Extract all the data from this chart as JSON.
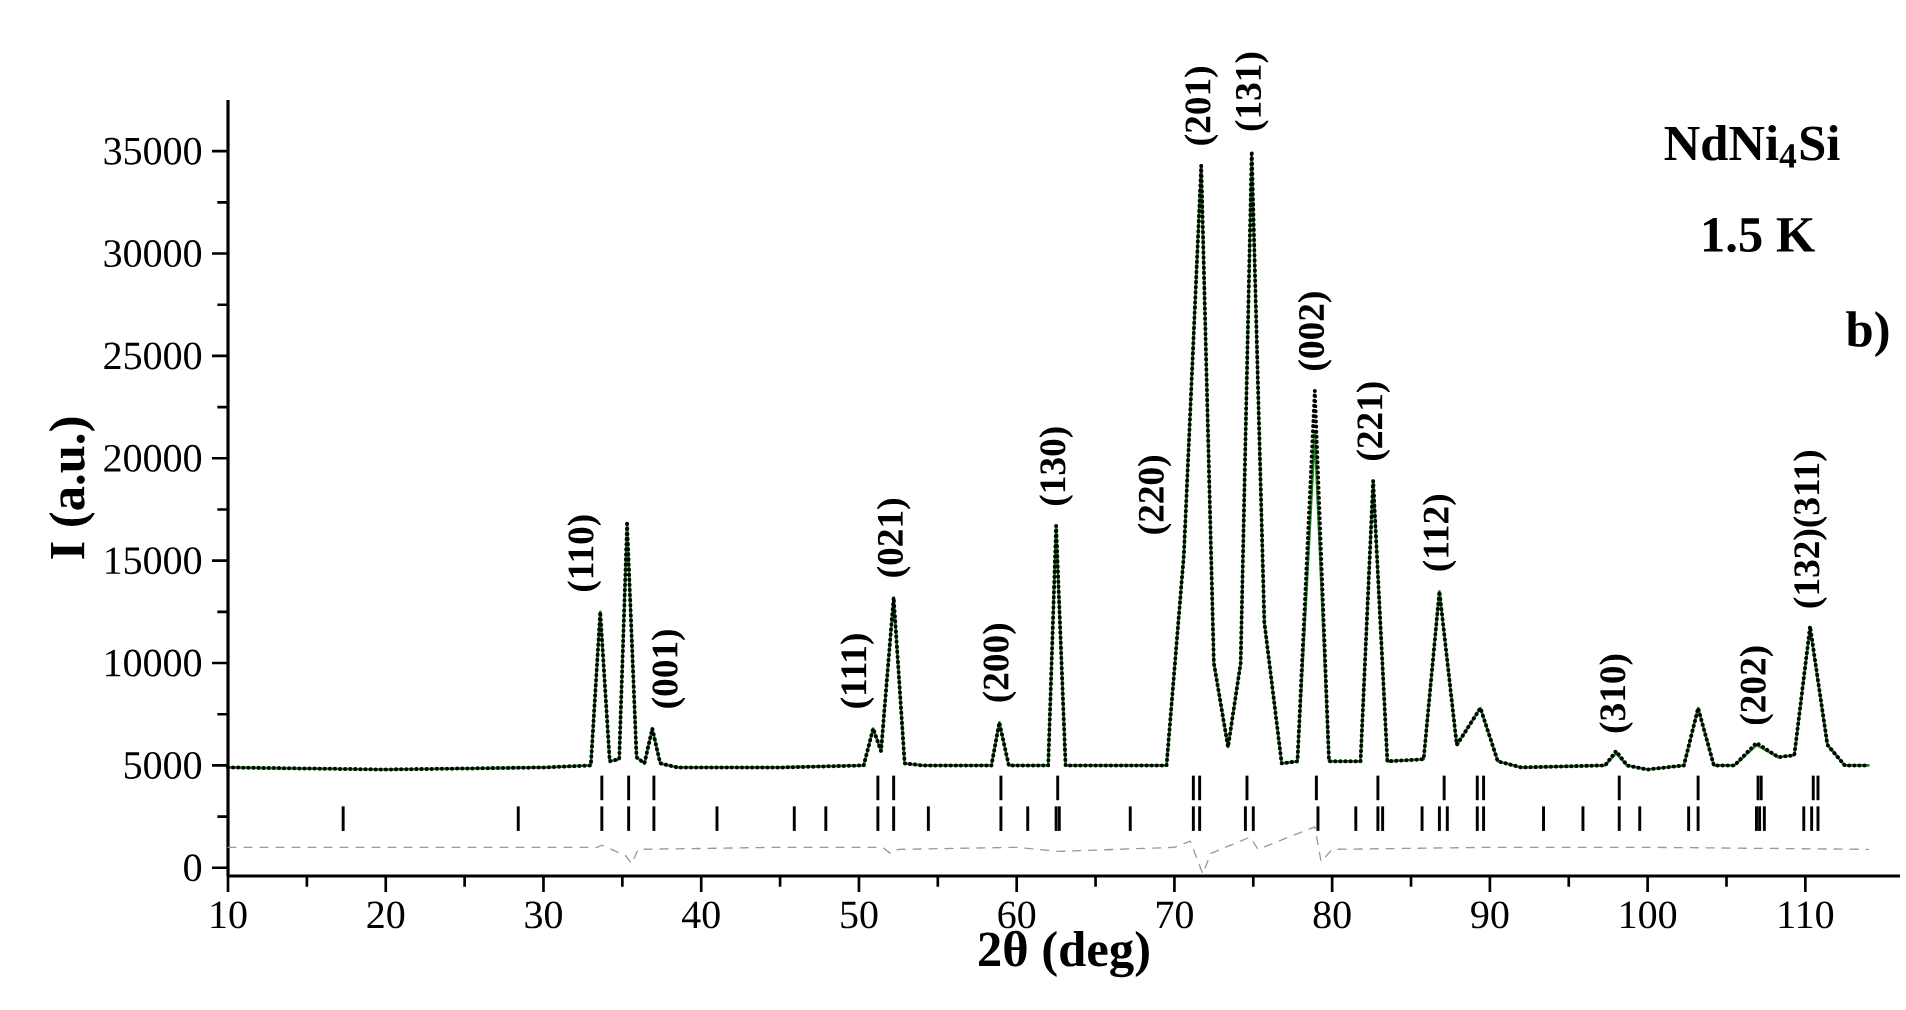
{
  "chart_data": {
    "type": "line",
    "title": "NdNi$_{4}$Si",
    "xlabel": "2θ (deg)",
    "ylabel": "I (a.u.)",
    "xlim": [
      10,
      116
    ],
    "xticks": [
      10,
      20,
      30,
      40,
      50,
      60,
      70,
      80,
      90,
      100,
      110
    ],
    "ylim": [
      -400,
      37500
    ],
    "yticks": [
      0,
      5000,
      10000,
      15000,
      20000,
      25000,
      30000,
      35000
    ],
    "grid": false,
    "series": [
      {
        "color": "#1a8a1a",
        "line_style": "solid",
        "x": [
          10,
          20,
          30,
          33.0,
          33.6,
          34.2,
          34.8,
          35.3,
          35.9,
          36.4,
          36.9,
          37.4,
          38.5,
          45,
          50.3,
          50.9,
          51.4,
          52.2,
          52.9,
          54,
          58.4,
          58.9,
          59.5,
          62.0,
          62.5,
          63.1,
          69.5,
          70.6,
          71.7,
          72.5,
          73.4,
          74.2,
          74.9,
          75.7,
          76.8,
          77.8,
          78.9,
          79.8,
          81.8,
          82.6,
          83.5,
          85.8,
          86.8,
          87.9,
          89.4,
          90.5,
          92,
          97.3,
          98.0,
          98.7,
          100,
          102.3,
          103.2,
          104.2,
          105.5,
          106.9,
          108.3,
          109.3,
          110.3,
          111.4,
          112.5,
          114
        ],
        "values": [
          4900,
          4800,
          4900,
          5000,
          12500,
          5200,
          5300,
          16800,
          5400,
          5100,
          6800,
          5100,
          4900,
          4900,
          5000,
          6800,
          5700,
          13200,
          5100,
          5000,
          5000,
          7100,
          5000,
          5000,
          16700,
          5000,
          5000,
          15300,
          34300,
          10000,
          5900,
          10000,
          34800,
          12000,
          5100,
          5200,
          21300,
          5200,
          5200,
          18900,
          5200,
          5300,
          13500,
          6000,
          7800,
          5200,
          4900,
          5000,
          5600,
          5000,
          4800,
          5000,
          7800,
          5000,
          5000,
          6000,
          5400,
          5500,
          11700,
          6000,
          5000,
          5000
        ]
      },
      {
        "color": "#000000",
        "line_style": "dotted",
        "x": [
          10,
          20,
          30,
          33.0,
          33.6,
          34.2,
          34.8,
          35.3,
          35.9,
          36.4,
          36.9,
          37.4,
          38.5,
          45,
          50.3,
          50.9,
          51.4,
          52.2,
          52.9,
          54,
          58.4,
          58.9,
          59.5,
          62.0,
          62.5,
          63.1,
          69.5,
          70.6,
          71.7,
          72.5,
          73.4,
          74.2,
          74.9,
          75.7,
          76.8,
          77.8,
          78.9,
          79.8,
          81.8,
          82.6,
          83.5,
          85.8,
          86.8,
          87.9,
          89.4,
          90.5,
          92,
          97.3,
          98.0,
          98.7,
          100,
          102.3,
          103.2,
          104.2,
          105.5,
          106.9,
          108.3,
          109.3,
          110.3,
          111.4,
          112.5,
          114
        ],
        "values": [
          4900,
          4800,
          4900,
          5000,
          12500,
          5200,
          5300,
          16800,
          5400,
          5100,
          6800,
          5100,
          4900,
          4900,
          5000,
          6800,
          5700,
          13200,
          5100,
          5000,
          5000,
          7100,
          5000,
          5000,
          16700,
          5000,
          5000,
          15300,
          34300,
          10000,
          5900,
          10000,
          35000,
          12000,
          5100,
          5200,
          23300,
          5200,
          5200,
          18900,
          5200,
          5300,
          13500,
          6000,
          7800,
          5200,
          4900,
          5000,
          5700,
          5000,
          4800,
          5000,
          7800,
          5000,
          5000,
          6100,
          5400,
          5500,
          11800,
          6000,
          5000,
          5000
        ]
      },
      {
        "color": "#999999",
        "line_style": "dashed",
        "x": [
          10,
          20,
          30,
          33.4,
          33.7,
          35.2,
          35.6,
          36.0,
          45,
          51.5,
          52.0,
          52.5,
          60,
          62.7,
          70,
          71.0,
          71.8,
          72.3,
          74.8,
          75.3,
          78.9,
          79.3,
          80,
          90,
          100,
          114
        ],
        "values": [
          1000,
          1000,
          1000,
          1000,
          1100,
          600,
          200,
          900,
          1000,
          1000,
          700,
          900,
          1000,
          800,
          1000,
          1300,
          -300,
          700,
          1500,
          900,
          2000,
          300,
          900,
          1000,
          1000,
          900
        ]
      },
      {
        "type": "bar",
        "color": "#000000",
        "base": [
          1800,
          1800,
          1800,
          1800,
          1800,
          1800,
          1800,
          1800,
          1800,
          1800,
          1800,
          1800,
          1800,
          1800,
          1800,
          1800,
          1800,
          1800,
          1800,
          1800,
          1800,
          1800,
          1800,
          1800,
          1800,
          1800,
          1800,
          1800,
          1800,
          1800,
          1800,
          1800,
          1800,
          1800,
          1800,
          1800,
          1800,
          1800,
          1800,
          1800,
          1800
        ],
        "x": [
          17.3,
          28.4,
          33.7,
          35.4,
          37.0,
          41.0,
          45.9,
          47.9,
          51.2,
          52.2,
          54.4,
          59.0,
          60.7,
          62.5,
          62.7,
          67.2,
          71.2,
          71.6,
          74.5,
          75.0,
          79.1,
          81.5,
          82.9,
          83.2,
          85.7,
          86.8,
          87.3,
          89.2,
          89.6,
          93.4,
          95.9,
          98.2,
          99.5,
          102.6,
          103.2,
          106.9,
          107.1,
          107.4,
          109.9,
          110.4,
          110.8
        ],
        "values": [
          1200,
          1200,
          1200,
          1200,
          1200,
          1200,
          1200,
          1200,
          1200,
          1200,
          1200,
          1200,
          1200,
          1200,
          1200,
          1200,
          1200,
          1200,
          1200,
          1200,
          1200,
          1200,
          1200,
          1200,
          1200,
          1200,
          1200,
          1200,
          1200,
          1200,
          1200,
          1200,
          1200,
          1200,
          1200,
          1200,
          1200,
          1200,
          1200,
          1200,
          1200
        ]
      },
      {
        "type": "bar",
        "color": "#000000",
        "x": [
          33.7,
          35.4,
          37.0,
          51.2,
          52.2,
          59.0,
          62.6,
          71.2,
          71.6,
          74.6,
          79.0,
          82.9,
          87.1,
          89.2,
          89.6,
          98.2,
          103.2,
          107.0,
          107.2,
          110.5,
          110.8
        ],
        "base": [
          3300,
          3300,
          3300,
          3300,
          3300,
          3300,
          3300,
          3300,
          3300,
          3300,
          3300,
          3300,
          3300,
          3300,
          3300,
          3300,
          3300,
          3300,
          3300,
          3300,
          3300
        ],
        "values": [
          1200,
          1200,
          1200,
          1200,
          1200,
          1200,
          1200,
          1200,
          1200,
          1200,
          1200,
          1200,
          1200,
          1200,
          1200,
          1200,
          1200,
          1200,
          1200,
          1200,
          1200
        ]
      }
    ],
    "annotations": [
      {
        "text": "(110)",
        "x": 33.6,
        "y": 12500
      },
      {
        "text": "(001)",
        "x": 36.9,
        "y": 6800
      },
      {
        "text": "(111)",
        "x": 50.9,
        "y": 6800
      },
      {
        "text": "(021)",
        "x": 52.2,
        "y": 13200
      },
      {
        "text": "(200)",
        "x": 58.9,
        "y": 7100
      },
      {
        "text": "(130)",
        "x": 62.5,
        "y": 16700
      },
      {
        "text": "(220)",
        "x": 70.6,
        "y": 15300
      },
      {
        "text": "(201)",
        "x": 71.7,
        "y": 34300
      },
      {
        "text": "(131)",
        "x": 74.9,
        "y": 35000
      },
      {
        "text": "(002)",
        "x": 78.9,
        "y": 23300
      },
      {
        "text": "(221)",
        "x": 82.6,
        "y": 18900
      },
      {
        "text": "(112)",
        "x": 86.8,
        "y": 13500
      },
      {
        "text": "(310)",
        "x": 98.0,
        "y": 5600
      },
      {
        "text": "(202)",
        "x": 106.9,
        "y": 6000
      },
      {
        "text": "(132)(311)",
        "x": 110.3,
        "y": 11700
      },
      "1.5 K",
      "b)"
    ]
  }
}
